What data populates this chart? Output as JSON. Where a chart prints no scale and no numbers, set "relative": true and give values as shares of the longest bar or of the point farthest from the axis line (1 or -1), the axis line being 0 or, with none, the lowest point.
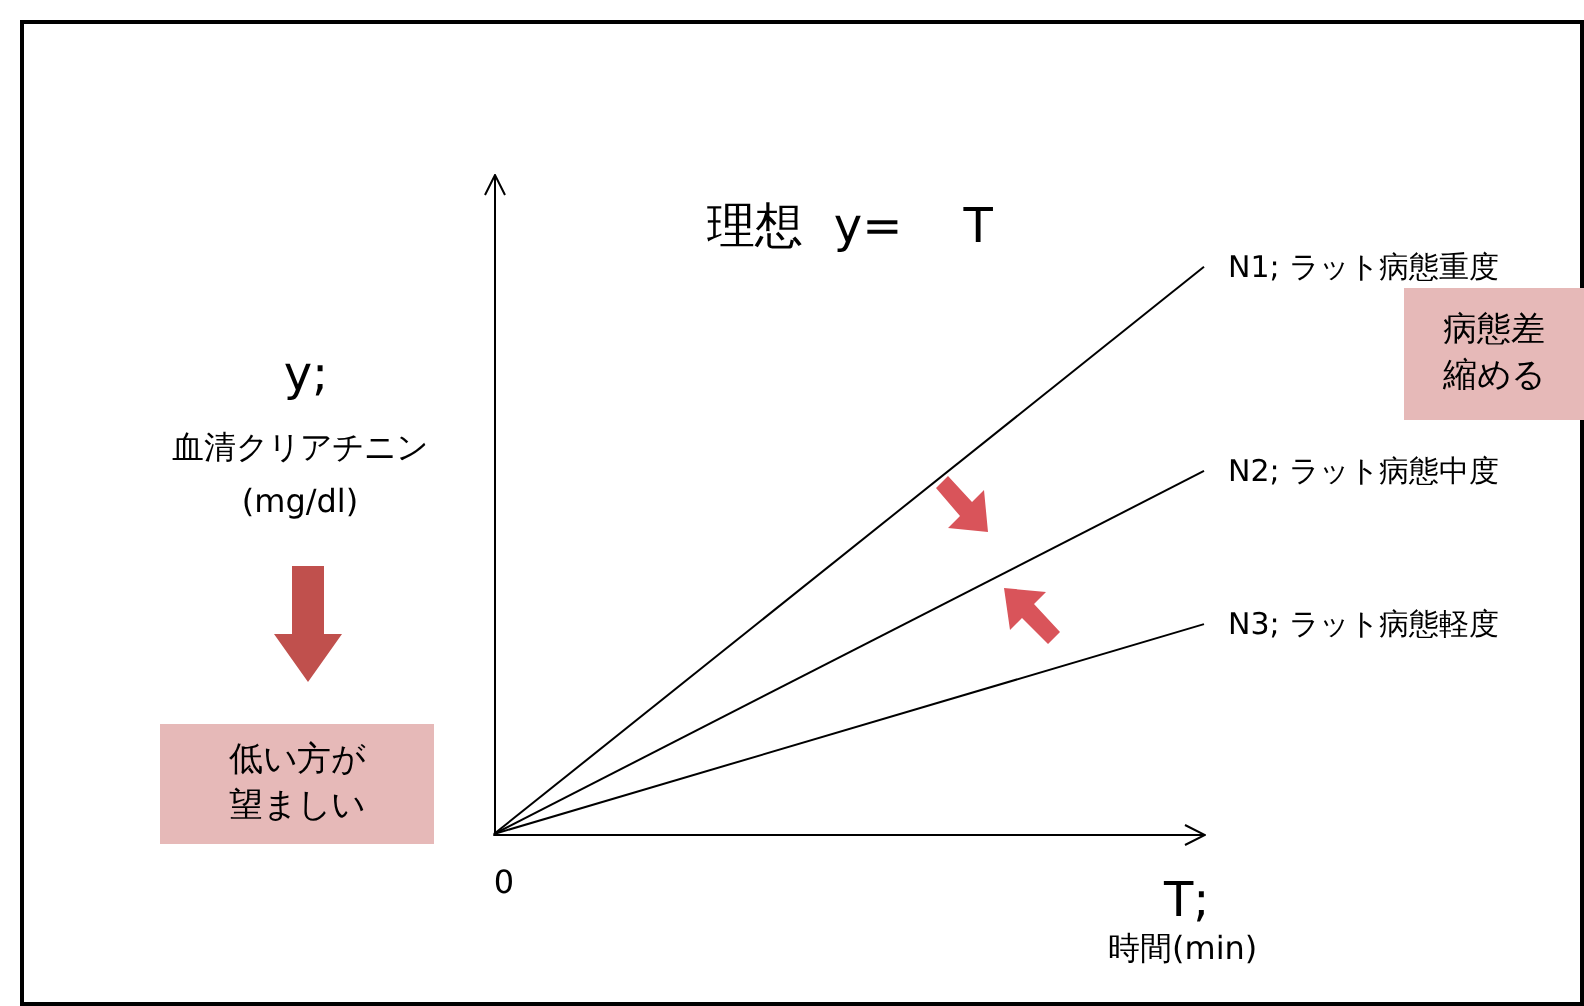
{
  "chart_data": {
    "type": "line",
    "relative": true,
    "xlabel": "T;\n時間(min)",
    "ylabel": "y;\n血清クリアチニン\n(mg/dl)",
    "categories": [
      null,
      null
    ],
    "series": [
      {
        "name": "N1; ラット病態重度",
        "color": "#000000",
        "values": [
          0,
          1
        ]
      },
      {
        "name": "N2; ラット病態中度",
        "color": "#000000",
        "values": [
          0,
          0.64
        ]
      },
      {
        "name": "N3; ラット病態軽度",
        "color": "#000000",
        "values": [
          0,
          0.37
        ]
      }
    ],
    "annotations": [
      "理想  y=    T",
      "病態差縮める",
      "低い方が望ましい",
      "0"
    ],
    "grid": false,
    "legend": false,
    "marker": "none",
    "line_style": "solid"
  }
}
